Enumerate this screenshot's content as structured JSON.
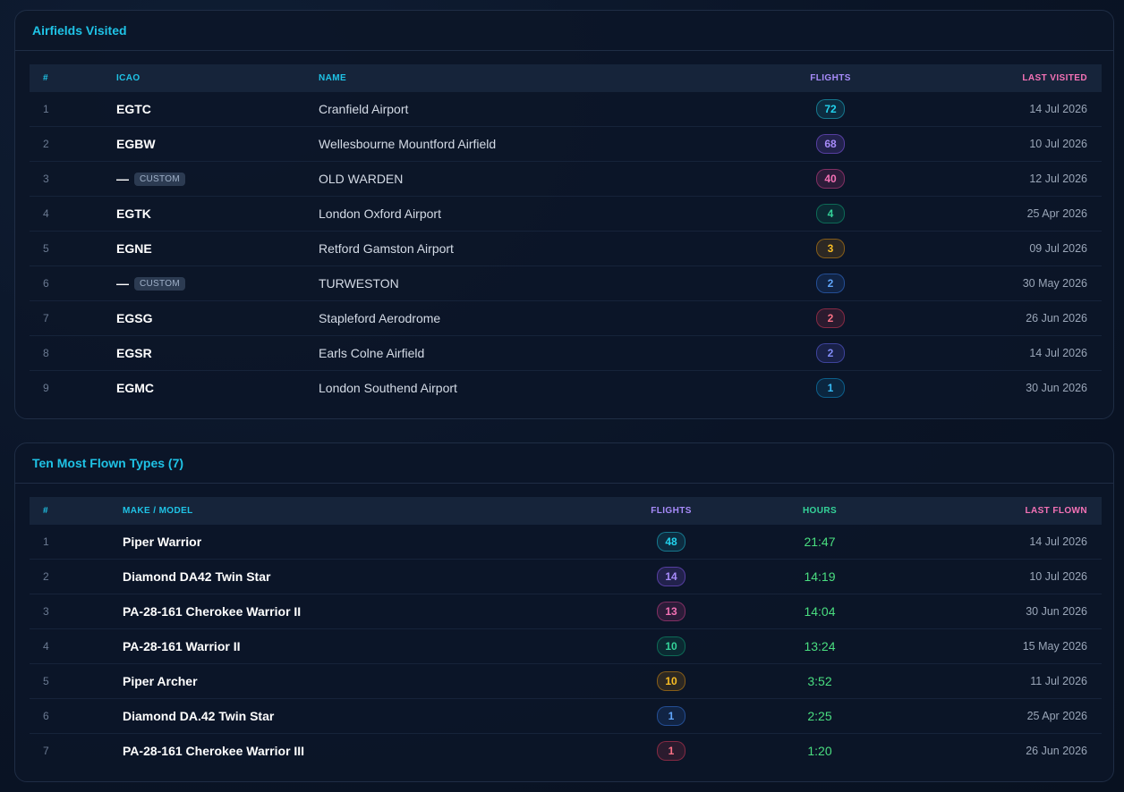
{
  "airfields": {
    "title": "Airfields Visited",
    "headers": {
      "num": "#",
      "icao": "ICAO",
      "name": "NAME",
      "flights": "FLIGHTS",
      "last": "LAST VISITED"
    },
    "custom_tag": "CUSTOM",
    "rows": [
      {
        "num": "1",
        "icao": "EGTC",
        "name": "Cranfield Airport",
        "flights": "72",
        "color": "cyan",
        "last": "14 Jul 2026"
      },
      {
        "num": "2",
        "icao": "EGBW",
        "name": "Wellesbourne Mountford Airfield",
        "flights": "68",
        "color": "purple",
        "last": "10 Jul 2026"
      },
      {
        "num": "3",
        "icao": "—",
        "custom": true,
        "name": "OLD WARDEN",
        "flights": "40",
        "color": "pink",
        "last": "12 Jul 2026"
      },
      {
        "num": "4",
        "icao": "EGTK",
        "name": "London Oxford Airport",
        "flights": "4",
        "color": "green",
        "last": "25 Apr 2026"
      },
      {
        "num": "5",
        "icao": "EGNE",
        "name": "Retford Gamston Airport",
        "flights": "3",
        "color": "orange",
        "last": "09 Jul 2026"
      },
      {
        "num": "6",
        "icao": "—",
        "custom": true,
        "name": "TURWESTON",
        "flights": "2",
        "color": "blue",
        "last": "30 May 2026"
      },
      {
        "num": "7",
        "icao": "EGSG",
        "name": "Stapleford Aerodrome",
        "flights": "2",
        "color": "red",
        "last": "26 Jun 2026"
      },
      {
        "num": "8",
        "icao": "EGSR",
        "name": "Earls Colne Airfield",
        "flights": "2",
        "color": "indigo",
        "last": "14 Jul 2026"
      },
      {
        "num": "9",
        "icao": "EGMC",
        "name": "London Southend Airport",
        "flights": "1",
        "color": "sky",
        "last": "30 Jun 2026"
      }
    ]
  },
  "types": {
    "title": "Ten Most Flown Types (7)",
    "headers": {
      "num": "#",
      "make": "MAKE / MODEL",
      "flights": "FLIGHTS",
      "hours": "HOURS",
      "last": "LAST FLOWN"
    },
    "rows": [
      {
        "num": "1",
        "make": "Piper Warrior",
        "flights": "48",
        "color": "cyan",
        "hours": "21:47",
        "last": "14 Jul 2026"
      },
      {
        "num": "2",
        "make": "Diamond DA42 Twin Star",
        "flights": "14",
        "color": "purple",
        "hours": "14:19",
        "last": "10 Jul 2026"
      },
      {
        "num": "3",
        "make": "PA-28-161 Cherokee Warrior II",
        "flights": "13",
        "color": "pink",
        "hours": "14:04",
        "last": "30 Jun 2026"
      },
      {
        "num": "4",
        "make": "PA-28-161 Warrior II",
        "flights": "10",
        "color": "green",
        "hours": "13:24",
        "last": "15 May 2026"
      },
      {
        "num": "5",
        "make": "Piper Archer",
        "flights": "10",
        "color": "orange",
        "hours": "3:52",
        "last": "11 Jul 2026"
      },
      {
        "num": "6",
        "make": "Diamond DA.42 Twin Star",
        "flights": "1",
        "color": "blue",
        "hours": "2:25",
        "last": "25 Apr 2026"
      },
      {
        "num": "7",
        "make": "PA-28-161 Cherokee Warrior III",
        "flights": "1",
        "color": "red",
        "hours": "1:20",
        "last": "26 Jun 2026"
      }
    ]
  }
}
